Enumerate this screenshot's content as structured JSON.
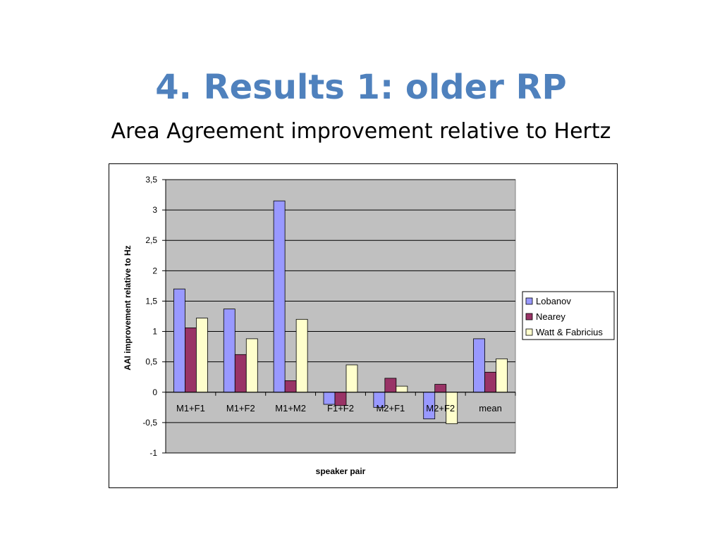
{
  "slide": {
    "title": "4. Results 1: older RP",
    "subtitle": "Area Agreement improvement relative to Hertz"
  },
  "chart_data": {
    "type": "bar",
    "title": "",
    "xlabel": "speaker pair",
    "ylabel": "AAI improvement relative to Hz",
    "categories": [
      "M1+F1",
      "M1+F2",
      "M1+M2",
      "F1+F2",
      "M2+F1",
      "M2+F2",
      "mean"
    ],
    "ylim": [
      -1,
      3.5
    ],
    "yticks": [
      3.5,
      3,
      2.5,
      2,
      1.5,
      1,
      0.5,
      0,
      -0.5,
      -1
    ],
    "ytick_labels": [
      "3,5",
      "3",
      "2,5",
      "2",
      "1,5",
      "1",
      "0,5",
      "0",
      "-0,5",
      "-1"
    ],
    "grid": true,
    "legend_position": "right",
    "plot_background": "#c0c0c0",
    "series": [
      {
        "name": "Lobanov",
        "color": "#9999ff",
        "values": [
          1.7,
          1.37,
          3.15,
          -0.2,
          -0.25,
          -0.44,
          0.88
        ]
      },
      {
        "name": "Nearey",
        "color": "#993366",
        "values": [
          1.06,
          0.62,
          0.19,
          -0.22,
          0.23,
          0.13,
          0.33
        ]
      },
      {
        "name": "Watt & Fabricius",
        "color": "#ffffcc",
        "values": [
          1.22,
          0.88,
          1.2,
          0.45,
          0.1,
          -0.52,
          0.55
        ]
      }
    ]
  }
}
